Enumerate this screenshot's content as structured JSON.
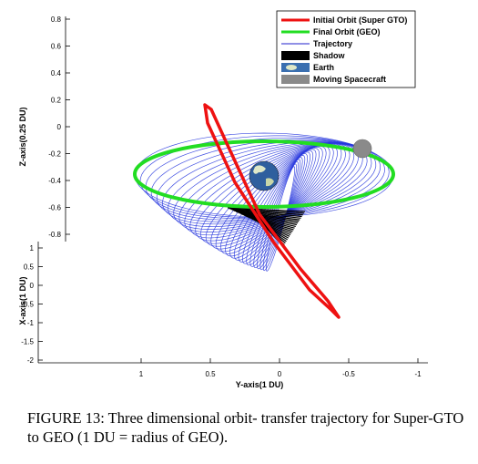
{
  "chart_data": {
    "type": "line3d",
    "title": "",
    "zlabel": "Z-axis(0.25 DU)",
    "xlabel": "X-axis(1 DU)",
    "ylabel": "Y-axis(1 DU)",
    "z_ticks": [
      "0.8",
      "0.6",
      "0.4",
      "0.2",
      "0",
      "-0.2",
      "-0.4",
      "-0.6",
      "-0.8"
    ],
    "x_ticks": [
      "1",
      "0.5",
      "0",
      "-0.5",
      "-1",
      "-1.5",
      "-2"
    ],
    "y_ticks": [
      "1",
      "0.5",
      "0",
      "-0.5",
      "-1"
    ],
    "legend_position": "top-right",
    "series": [
      {
        "name": "Initial Orbit (Super GTO)",
        "color": "#ee1111",
        "style": "thick-line"
      },
      {
        "name": "Final Orbit (GEO)",
        "color": "#22dd22",
        "style": "thick-line"
      },
      {
        "name": "Trajectory",
        "color": "#2222cc",
        "style": "thin-line"
      },
      {
        "name": "Shadow",
        "color": "#000000",
        "style": "filled-box"
      },
      {
        "name": "Earth",
        "color": "#3a6fb0",
        "style": "earth-icon"
      },
      {
        "name": "Moving Spacecraft",
        "color": "#8a8a8a",
        "style": "filled-box"
      }
    ],
    "geometry_note": "Spiral transfer from a highly inclined Super-GTO (red) to circular GEO (green); blue trajectory spirals between them; black segments mark shadow passages; Earth at center; spacecraft shown as gray sphere on GEO."
  },
  "caption": {
    "text": "FIGURE 13: Three dimensional orbit- transfer trajectory for Super-GTO to GEO (1 DU = radius of GEO)."
  }
}
